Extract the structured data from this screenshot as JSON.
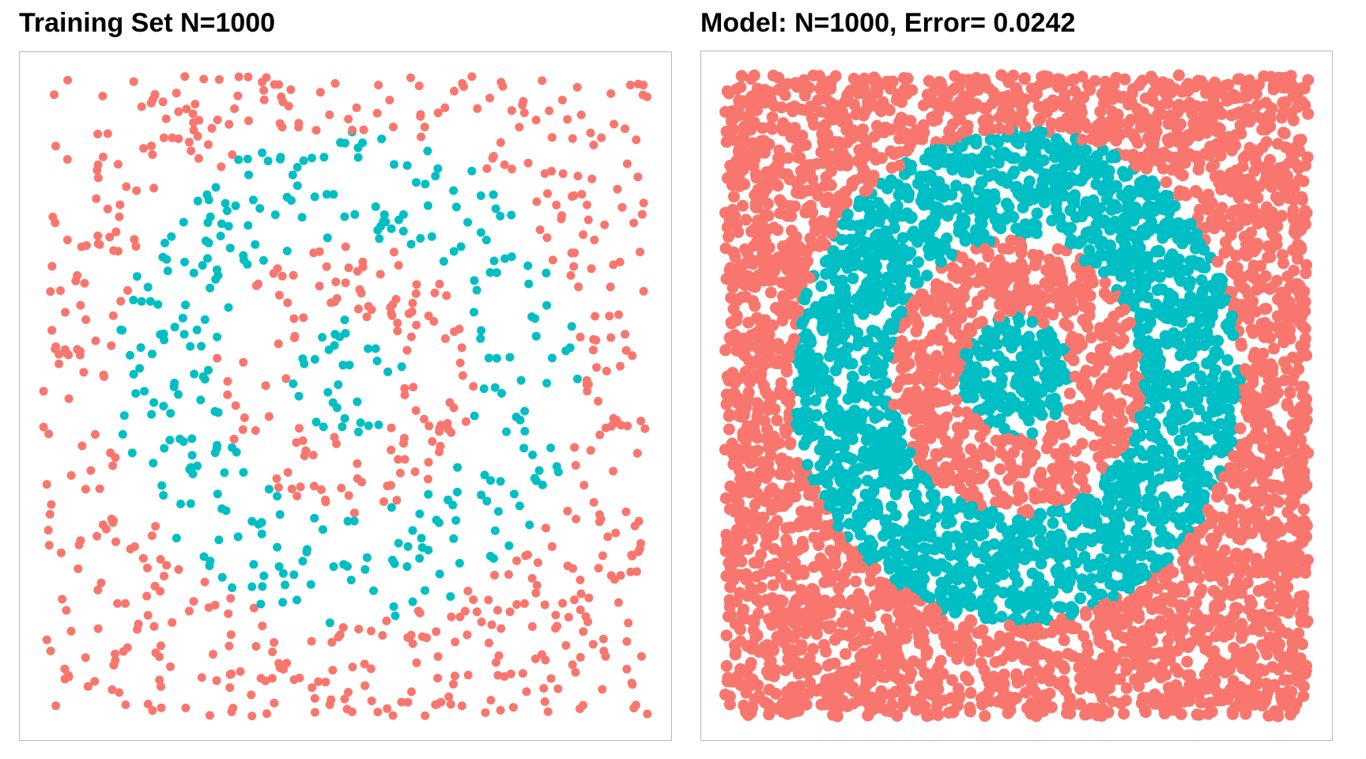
{
  "colors": {
    "class_outside": "#F8766D",
    "class_ring": "#00BFC4",
    "frame_border": "#B8B8B8",
    "background": "#FFFFFF"
  },
  "chart_data": [
    {
      "type": "scatter",
      "title": "Training Set N=1000",
      "n_points": 1000,
      "xlim": [
        0,
        1
      ],
      "ylim": [
        0,
        1
      ],
      "grid": false,
      "axes_visible": false,
      "legend": "none",
      "classes": [
        {
          "color": "#F8766D",
          "region": "background, inner disk and outside outer ring"
        },
        {
          "color": "#00BFC4",
          "region": "annular ring and small central disk"
        }
      ]
    },
    {
      "type": "scatter",
      "title": "Model: N=1000, Error= 0.0242",
      "n_points": 1000,
      "error": 0.0242,
      "xlim": [
        0,
        1
      ],
      "ylim": [
        0,
        1
      ],
      "grid": false,
      "axes_visible": false,
      "legend": "none",
      "classes": [
        {
          "color": "#F8766D",
          "region": "predicted outside"
        },
        {
          "color": "#00BFC4",
          "region": "predicted ring and center"
        }
      ]
    }
  ]
}
